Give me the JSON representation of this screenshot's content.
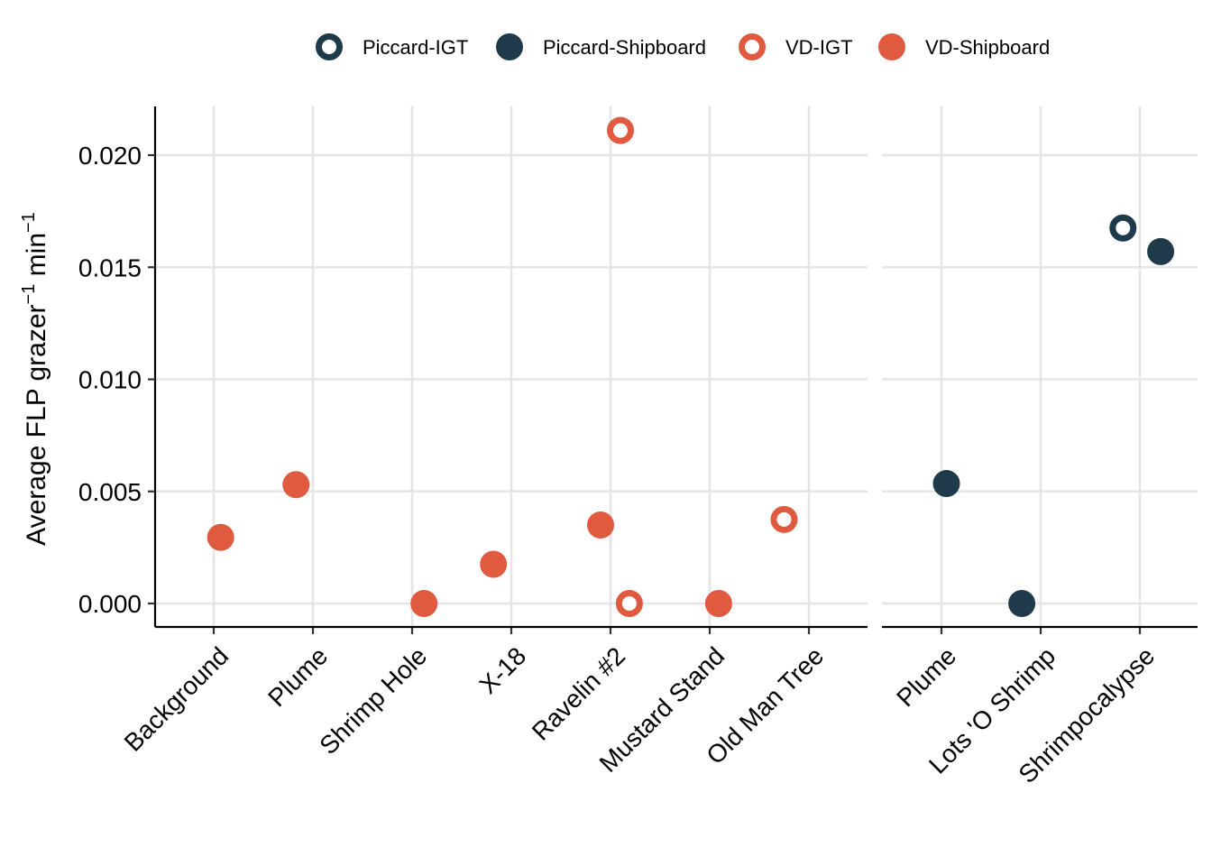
{
  "chart_data": {
    "type": "scatter",
    "title": "",
    "ylabel_parts": {
      "main": "Average FLP  grazer",
      "sup1": "−1",
      "mid": " min",
      "sup2": "−1"
    },
    "ylim": [
      -0.001,
      0.022
    ],
    "yticks": [
      0.0,
      0.005,
      0.01,
      0.015,
      0.02
    ],
    "ytick_labels": [
      "0.000",
      "0.005",
      "0.010",
      "0.015",
      "0.020"
    ],
    "grid": true,
    "legend_position": "top",
    "legend": [
      {
        "name": "Piccard-IGT",
        "color": "#1f3a4a",
        "filled": false
      },
      {
        "name": "Piccard-Shipboard",
        "color": "#1f3a4a",
        "filled": true
      },
      {
        "name": "VD-IGT",
        "color": "#e05a40",
        "filled": false
      },
      {
        "name": "VD-Shipboard",
        "color": "#e05a40",
        "filled": true
      }
    ],
    "panels": [
      {
        "categories": [
          "Background",
          "Plume",
          "Shrimp Hole",
          "X-18",
          "Ravelin #2",
          "Mustard Stand",
          "Old Man Tree"
        ],
        "points": [
          {
            "category": "Background",
            "series": "VD-Shipboard",
            "y": 0.00295
          },
          {
            "category": "Plume",
            "series": "VD-Shipboard",
            "y": 0.0053
          },
          {
            "category": "Shrimp Hole",
            "series": "VD-Shipboard",
            "y": 0.0
          },
          {
            "category": "X-18",
            "series": "VD-Shipboard",
            "y": 0.00175
          },
          {
            "category": "Ravelin #2",
            "series": "VD-Shipboard",
            "y": 0.0035
          },
          {
            "category": "Ravelin #2",
            "series": "VD-IGT",
            "y": 0.0211
          },
          {
            "category": "Ravelin #2",
            "series": "VD-IGT",
            "y": 0.0
          },
          {
            "category": "Mustard Stand",
            "series": "VD-Shipboard",
            "y": 0.0
          },
          {
            "category": "Old Man Tree",
            "series": "VD-IGT",
            "y": 0.00375
          }
        ]
      },
      {
        "categories": [
          "Plume",
          "Lots 'O Shrimp",
          "Shrimpocalypse"
        ],
        "points": [
          {
            "category": "Plume",
            "series": "Piccard-Shipboard",
            "y": 0.00535
          },
          {
            "category": "Lots 'O Shrimp",
            "series": "Piccard-Shipboard",
            "y": 0.0
          },
          {
            "category": "Shrimpocalypse",
            "series": "Piccard-IGT",
            "y": 0.01675
          },
          {
            "category": "Shrimpocalypse",
            "series": "Piccard-Shipboard",
            "y": 0.0157
          }
        ]
      }
    ]
  }
}
